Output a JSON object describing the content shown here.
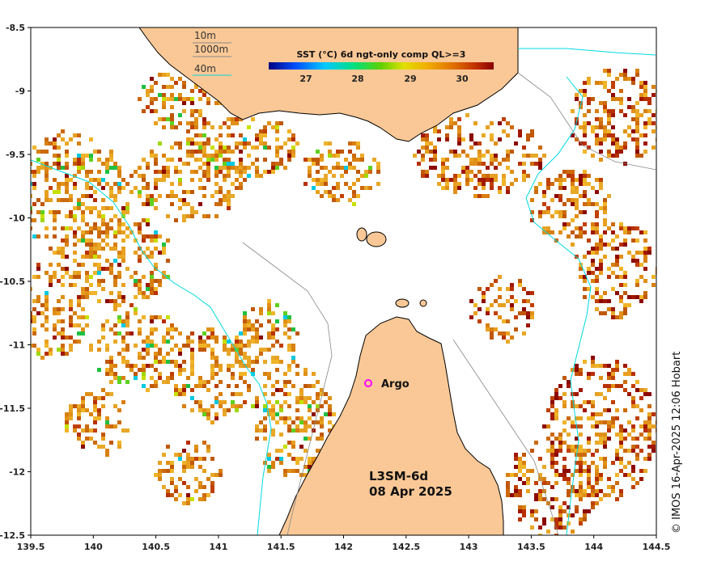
{
  "map": {
    "lon_ticks": [
      "139.5",
      "140",
      "140.5",
      "141",
      "141.5",
      "142",
      "142.5",
      "143",
      "143.5",
      "144",
      "144.5"
    ],
    "lat_ticks": [
      "-8.5",
      "-9",
      "-9.5",
      "-10",
      "-10.5",
      "-11",
      "-11.5",
      "-12",
      "-12.5"
    ],
    "lon_range": [
      139.5,
      144.5
    ],
    "lat_range": [
      -12.5,
      -8.5
    ]
  },
  "colorbar": {
    "title": "SST (°C) 6d ngt-only comp QL>=3",
    "ticks": [
      "27",
      "28",
      "29",
      "30"
    ]
  },
  "depth_legend": {
    "items": [
      {
        "label": "10m",
        "color": "#888888"
      },
      {
        "label": "1000m",
        "color": "#888888"
      },
      {
        "label": "40m",
        "color": "#00d8e0"
      }
    ]
  },
  "annotations": {
    "product": "L3SM-6d",
    "date": "08 Apr 2025",
    "argo": "Argo",
    "credit": "© IMOS 16-Apr-2025 12:06 Hobart"
  },
  "colors": {
    "land": "#fac896",
    "contour_40m": "#00d8e0",
    "contour_grey": "#888888",
    "argo_marker": "#ff00ff"
  }
}
